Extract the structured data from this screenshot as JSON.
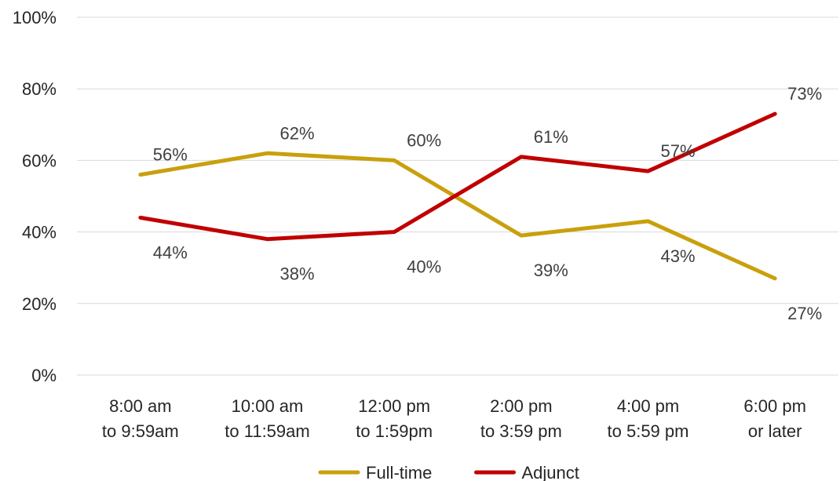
{
  "chart_data": {
    "type": "line",
    "title": "",
    "xlabel": "",
    "ylabel": "",
    "categories": [
      [
        "8:00 am",
        "to 9:59am"
      ],
      [
        "10:00 am",
        "to 11:59am"
      ],
      [
        "12:00 pm",
        "to 1:59pm"
      ],
      [
        "2:00 pm",
        "to 3:59 pm"
      ],
      [
        "4:00 pm",
        "to 5:59 pm"
      ],
      [
        "6:00 pm",
        "or later"
      ]
    ],
    "y_ticks": [
      "0%",
      "20%",
      "40%",
      "60%",
      "80%",
      "100%"
    ],
    "ylim": [
      0,
      100
    ],
    "grid": true,
    "legend_position": "bottom",
    "series": [
      {
        "name": "Full-time",
        "color": "#C9A00C",
        "values": [
          56,
          62,
          60,
          39,
          43,
          27
        ],
        "labels": [
          "56%",
          "62%",
          "60%",
          "39%",
          "43%",
          "27%"
        ]
      },
      {
        "name": "Adjunct",
        "color": "#C00000",
        "values": [
          44,
          38,
          40,
          61,
          57,
          73
        ],
        "labels": [
          "44%",
          "38%",
          "40%",
          "61%",
          "57%",
          "73%"
        ]
      }
    ]
  }
}
